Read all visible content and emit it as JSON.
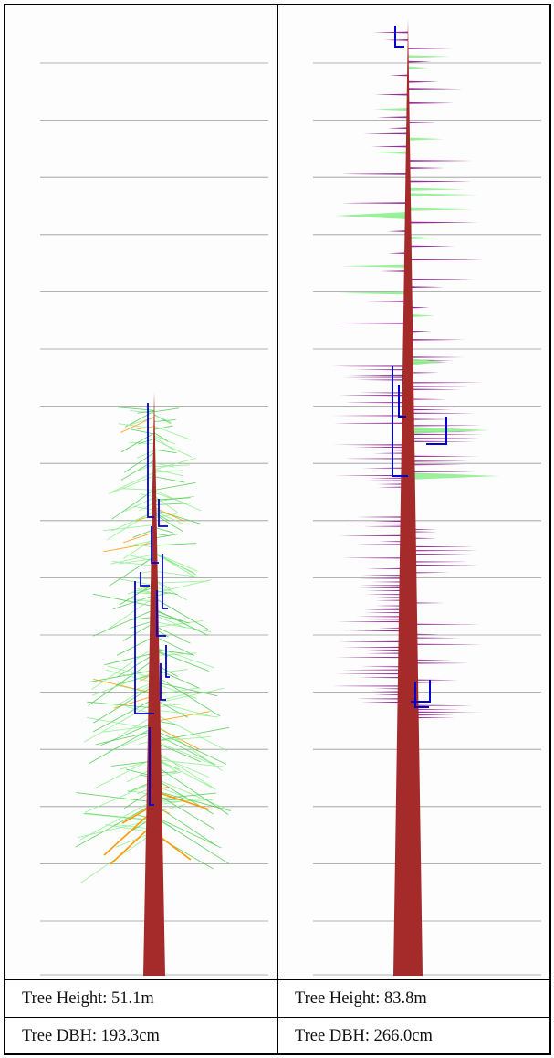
{
  "colors": {
    "trunk": "#a52a2a",
    "scaffold": "#0000cc",
    "foliage_green": "#55cc55",
    "foliage_light": "#90ee90",
    "foliage_orange": "#ff9900",
    "foliage_purple": "#8b1a8b",
    "gridline": "#999999"
  },
  "trees": [
    {
      "id": "left",
      "height_label": "Tree Height: 51.1m",
      "dbh_label": "Tree DBH: 193.3cm",
      "height_m": 51.1,
      "dbh_cm": 193.3,
      "foliage": "green-conifer"
    },
    {
      "id": "right",
      "height_label": "Tree Height: 83.8m",
      "dbh_label": "Tree DBH: 266.0cm",
      "height_m": 83.8,
      "dbh_cm": 266.0,
      "foliage": "purple-horizontal"
    }
  ]
}
